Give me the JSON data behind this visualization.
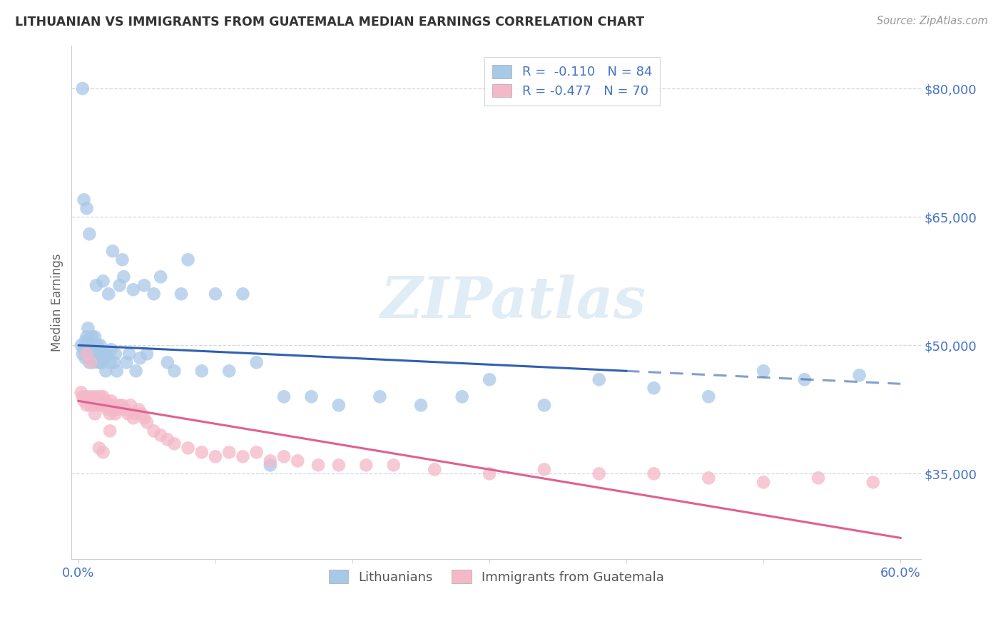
{
  "title": "LITHUANIAN VS IMMIGRANTS FROM GUATEMALA MEDIAN EARNINGS CORRELATION CHART",
  "source": "Source: ZipAtlas.com",
  "ylabel": "Median Earnings",
  "watermark": "ZIPatlas",
  "legend_blue_r": "R =  -0.110",
  "legend_blue_n": "N = 84",
  "legend_pink_r": "R = -0.477",
  "legend_pink_n": "N = 70",
  "legend_label_blue": "Lithuanians",
  "legend_label_pink": "Immigrants from Guatemala",
  "xlim": [
    -0.005,
    0.615
  ],
  "ylim": [
    25000,
    85000
  ],
  "yticks": [
    35000,
    50000,
    65000,
    80000
  ],
  "ytick_labels": [
    "$35,000",
    "$50,000",
    "$65,000",
    "$80,000"
  ],
  "xtick_pos": [
    0.0,
    0.6
  ],
  "xtick_labels": [
    "0.0%",
    "60.0%"
  ],
  "blue_color": "#a8c8e8",
  "pink_color": "#f4b8c8",
  "trend_blue_color": "#3060b0",
  "trend_pink_color": "#e06090",
  "axis_color": "#4472C4",
  "tick_color": "#4472C4",
  "background_color": "#ffffff",
  "blue_scatter_x": [
    0.002,
    0.003,
    0.004,
    0.005,
    0.005,
    0.006,
    0.006,
    0.006,
    0.007,
    0.007,
    0.007,
    0.008,
    0.008,
    0.009,
    0.009,
    0.009,
    0.01,
    0.01,
    0.011,
    0.011,
    0.012,
    0.012,
    0.013,
    0.013,
    0.014,
    0.014,
    0.015,
    0.015,
    0.016,
    0.016,
    0.017,
    0.017,
    0.018,
    0.018,
    0.019,
    0.02,
    0.021,
    0.022,
    0.023,
    0.024,
    0.025,
    0.026,
    0.027,
    0.028,
    0.03,
    0.032,
    0.033,
    0.035,
    0.037,
    0.04,
    0.042,
    0.045,
    0.048,
    0.05,
    0.055,
    0.06,
    0.065,
    0.07,
    0.075,
    0.08,
    0.09,
    0.1,
    0.11,
    0.12,
    0.13,
    0.14,
    0.15,
    0.17,
    0.19,
    0.22,
    0.25,
    0.28,
    0.3,
    0.34,
    0.38,
    0.42,
    0.46,
    0.5,
    0.53,
    0.57,
    0.003,
    0.004,
    0.006,
    0.008
  ],
  "blue_scatter_y": [
    50000,
    49000,
    49500,
    50500,
    48500,
    51000,
    50000,
    49000,
    52000,
    50500,
    49500,
    48000,
    50000,
    49000,
    48500,
    50000,
    49500,
    51000,
    48000,
    50000,
    49000,
    51000,
    57000,
    48500,
    49000,
    50000,
    48000,
    49500,
    48000,
    50000,
    49000,
    48000,
    57500,
    49000,
    48500,
    47000,
    49000,
    56000,
    48000,
    49500,
    61000,
    48000,
    49000,
    47000,
    57000,
    60000,
    58000,
    48000,
    49000,
    56500,
    47000,
    48500,
    57000,
    49000,
    56000,
    58000,
    48000,
    47000,
    56000,
    60000,
    47000,
    56000,
    47000,
    56000,
    48000,
    36000,
    44000,
    44000,
    43000,
    44000,
    43000,
    44000,
    46000,
    43000,
    46000,
    45000,
    44000,
    47000,
    46000,
    46500,
    80000,
    67000,
    66000,
    63000
  ],
  "pink_scatter_x": [
    0.002,
    0.003,
    0.004,
    0.005,
    0.006,
    0.007,
    0.008,
    0.009,
    0.01,
    0.011,
    0.012,
    0.013,
    0.014,
    0.015,
    0.016,
    0.017,
    0.018,
    0.019,
    0.02,
    0.021,
    0.022,
    0.023,
    0.024,
    0.025,
    0.026,
    0.027,
    0.028,
    0.03,
    0.032,
    0.034,
    0.036,
    0.038,
    0.04,
    0.042,
    0.044,
    0.046,
    0.048,
    0.05,
    0.055,
    0.06,
    0.065,
    0.07,
    0.08,
    0.09,
    0.1,
    0.11,
    0.12,
    0.13,
    0.14,
    0.15,
    0.16,
    0.175,
    0.19,
    0.21,
    0.23,
    0.26,
    0.3,
    0.34,
    0.38,
    0.42,
    0.46,
    0.5,
    0.54,
    0.58,
    0.006,
    0.009,
    0.012,
    0.015,
    0.018,
    0.023
  ],
  "pink_scatter_y": [
    44500,
    44000,
    43500,
    44000,
    43000,
    44000,
    43500,
    43000,
    44000,
    43000,
    43500,
    44000,
    43000,
    43500,
    44000,
    43000,
    44000,
    43000,
    43500,
    42500,
    43000,
    42000,
    43500,
    42500,
    43000,
    42000,
    42500,
    43000,
    43000,
    42500,
    42000,
    43000,
    41500,
    42000,
    42500,
    42000,
    41500,
    41000,
    40000,
    39500,
    39000,
    38500,
    38000,
    37500,
    37000,
    37500,
    37000,
    37500,
    36500,
    37000,
    36500,
    36000,
    36000,
    36000,
    36000,
    35500,
    35000,
    35500,
    35000,
    35000,
    34500,
    34000,
    34500,
    34000,
    49000,
    48000,
    42000,
    38000,
    37500,
    40000
  ],
  "trend_blue_x0": 0.0,
  "trend_blue_solid_end_x": 0.4,
  "trend_blue_x1": 0.6,
  "trend_blue_y0": 50000,
  "trend_blue_y1": 45500,
  "trend_pink_x0": 0.0,
  "trend_pink_x1": 0.6,
  "trend_pink_y0": 43500,
  "trend_pink_y1": 27500,
  "grid_color": "#d0d8e8",
  "spine_color": "#cccccc"
}
